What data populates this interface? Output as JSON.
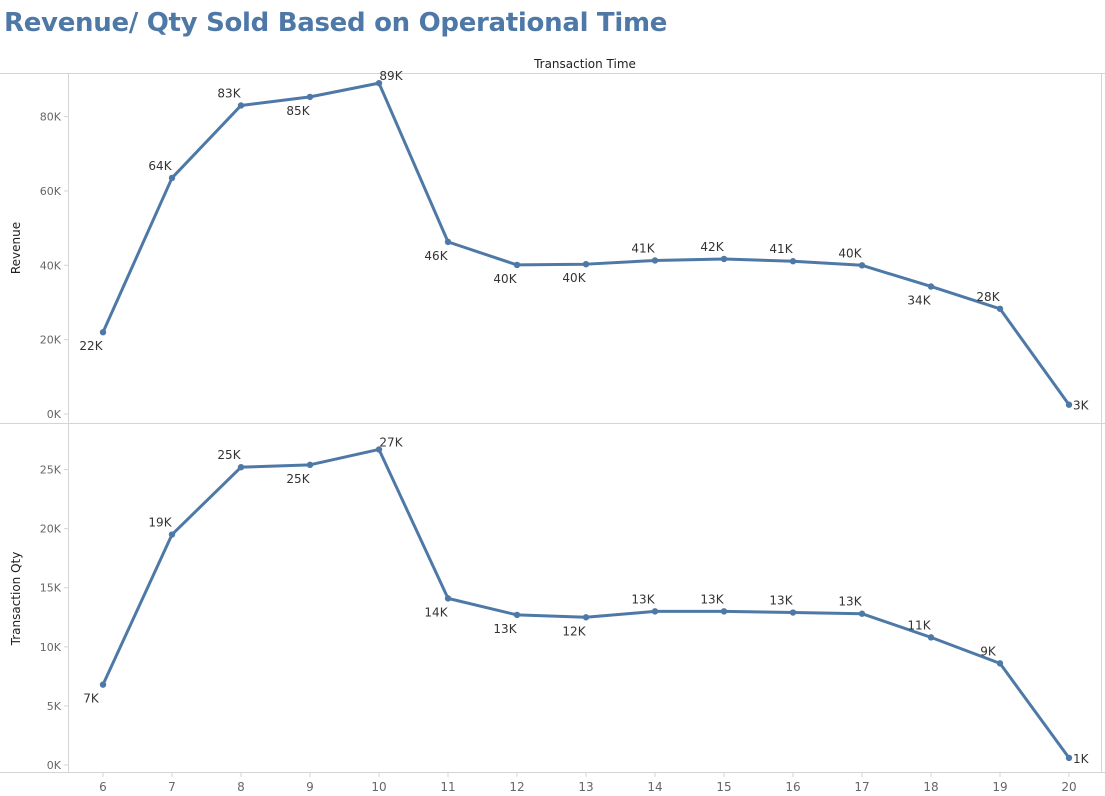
{
  "title": "Revenue/ Qty Sold Based on Operational Time",
  "chart_data": {
    "type": "line",
    "title": "Revenue/ Qty Sold Based on Operational Time",
    "xlabel": "Transaction Time",
    "x": [
      6,
      7,
      8,
      9,
      10,
      11,
      12,
      13,
      14,
      15,
      16,
      17,
      18,
      19,
      20
    ],
    "color": "#4e79a7",
    "panels": [
      {
        "ylabel": "Revenue",
        "ylim": [
          0,
          92000
        ],
        "yticks": [
          0,
          20000,
          40000,
          60000,
          80000
        ],
        "ytick_labels": [
          "0K",
          "20K",
          "40K",
          "60K",
          "80K"
        ],
        "values": [
          22000,
          63500,
          83000,
          85300,
          89000,
          46300,
          40100,
          40300,
          41300,
          41700,
          41100,
          40000,
          34300,
          28300,
          2500
        ],
        "data_labels": [
          "22K",
          "64K",
          "83K",
          "85K",
          "89K",
          "46K",
          "40K",
          "40K",
          "41K",
          "42K",
          "41K",
          "40K",
          "34K",
          "28K",
          "3K"
        ],
        "label_positions": [
          "below",
          "above",
          "above",
          "below",
          "above",
          "below",
          "below",
          "below",
          "above",
          "above",
          "above",
          "above",
          "below",
          "above",
          "right"
        ]
      },
      {
        "ylabel": "Transaction Qty",
        "ylim": [
          0,
          27500
        ],
        "yticks": [
          0,
          5000,
          10000,
          15000,
          20000,
          25000
        ],
        "ytick_labels": [
          "0K",
          "5K",
          "10K",
          "15K",
          "20K",
          "25K"
        ],
        "values": [
          6800,
          19500,
          25200,
          25400,
          26700,
          14100,
          12700,
          12500,
          13000,
          13000,
          12900,
          12800,
          10800,
          8600,
          600
        ],
        "data_labels": [
          "7K",
          "19K",
          "25K",
          "25K",
          "27K",
          "14K",
          "13K",
          "12K",
          "13K",
          "13K",
          "13K",
          "13K",
          "11K",
          "9K",
          "1K"
        ],
        "label_positions": [
          "below",
          "above",
          "above",
          "below",
          "above",
          "below",
          "below",
          "below",
          "above",
          "above",
          "above",
          "above",
          "above",
          "above",
          "right"
        ]
      }
    ]
  }
}
